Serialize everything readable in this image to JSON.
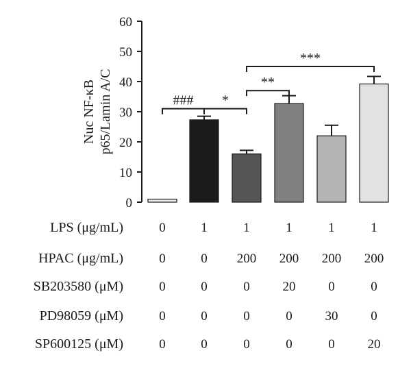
{
  "chart_data": {
    "type": "bar",
    "ylabel_lines": [
      "Nuc NF-κB",
      "p65/Lamin A/C"
    ],
    "ylim": [
      0,
      60
    ],
    "yticks": [
      0,
      10,
      20,
      30,
      40,
      50,
      60
    ],
    "values": [
      1,
      27.3,
      16,
      32.7,
      22,
      39.2
    ],
    "errors": [
      0,
      1.2,
      1.2,
      2.6,
      3.5,
      2.5
    ],
    "bar_colors": [
      "#ebebeb",
      "#1a1a1a",
      "#555555",
      "#808080",
      "#b4b4b4",
      "#e2e2e2"
    ],
    "conditions": [
      {
        "label": "LPS (μg/mL)",
        "values": [
          "0",
          "1",
          "1",
          "1",
          "1",
          "1"
        ]
      },
      {
        "label": "HPAC (μg/mL)",
        "values": [
          "0",
          "0",
          "200",
          "200",
          "200",
          "200"
        ]
      },
      {
        "label": "SB203580 (μM)",
        "values": [
          "0",
          "0",
          "0",
          "20",
          "0",
          "0"
        ]
      },
      {
        "label": "PD98059 (μM)",
        "values": [
          "0",
          "0",
          "0",
          "0",
          "30",
          "0"
        ]
      },
      {
        "label": "SP600125 (μM)",
        "values": [
          "0",
          "0",
          "0",
          "0",
          "0",
          "20"
        ]
      }
    ],
    "significance": [
      {
        "from": 0,
        "to": 1,
        "label": "###",
        "y": 31
      },
      {
        "from": 1,
        "to": 2,
        "label": "*",
        "y": 31
      },
      {
        "from": 2,
        "to": 3,
        "label": "**",
        "y": 37
      },
      {
        "from": 2,
        "to": 5,
        "label": "***",
        "y": 45
      }
    ]
  }
}
